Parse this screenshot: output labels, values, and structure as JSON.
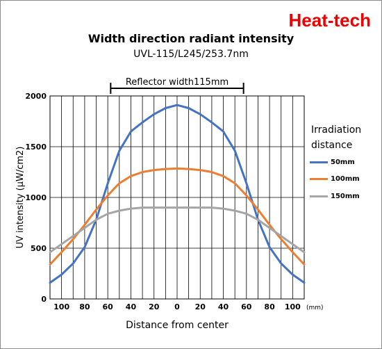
{
  "brand": "Heat-tech",
  "chart_data": {
    "type": "line",
    "title": "Width direction radiant intensity",
    "subtitle": "UVL-115/L245/253.7nm",
    "xlabel": "Distance from center",
    "ylabel": "UV intensity (μW/cm2)",
    "x_unit": "(mm)",
    "x_tick_labels": [
      "100",
      "80",
      "60",
      "40",
      "20",
      "0",
      "20",
      "40",
      "60",
      "80",
      "100"
    ],
    "x": [
      -110,
      -100,
      -90,
      -80,
      -70,
      -60,
      -50,
      -40,
      -30,
      -20,
      -10,
      0,
      10,
      20,
      30,
      40,
      50,
      60,
      70,
      80,
      90,
      100,
      110
    ],
    "xlim": [
      -110,
      110
    ],
    "ylim": [
      0,
      2000
    ],
    "y_ticks": [
      0,
      500,
      1000,
      1500,
      2000
    ],
    "grid": true,
    "legend_title": "Irradiation distance",
    "legend_title_lines": [
      "Irradiation",
      "distance"
    ],
    "legend_position": "right",
    "annotation": {
      "text": "Reflector width115mm",
      "from": -57.5,
      "to": 57.5
    },
    "series": [
      {
        "name": "50mm",
        "color": "#4472c4",
        "values": [
          160,
          240,
          350,
          510,
          780,
          1140,
          1460,
          1650,
          1740,
          1820,
          1880,
          1910,
          1880,
          1820,
          1740,
          1650,
          1460,
          1140,
          780,
          510,
          350,
          240,
          160
        ]
      },
      {
        "name": "100mm",
        "color": "#ed7d31",
        "values": [
          340,
          460,
          590,
          730,
          880,
          1020,
          1140,
          1210,
          1250,
          1270,
          1280,
          1285,
          1280,
          1270,
          1250,
          1210,
          1140,
          1020,
          880,
          730,
          590,
          460,
          340
        ]
      },
      {
        "name": "150mm",
        "color": "#a5a5a5",
        "values": [
          460,
          540,
          620,
          700,
          780,
          840,
          870,
          890,
          900,
          900,
          900,
          900,
          900,
          900,
          900,
          890,
          870,
          840,
          780,
          700,
          620,
          540,
          460
        ]
      }
    ]
  }
}
